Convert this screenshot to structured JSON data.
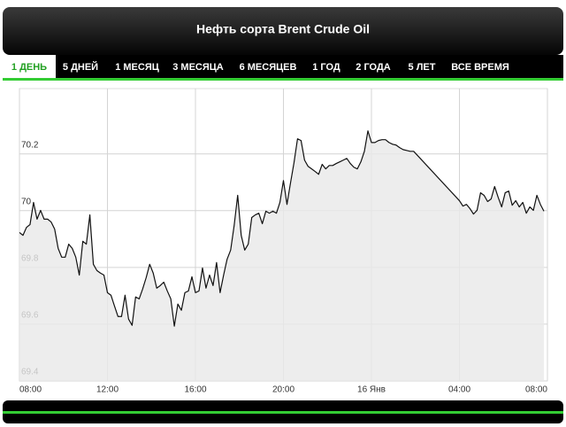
{
  "tabs": [
    "1 ДЕНЬ",
    "5 ДНЕЙ",
    "1 МЕСЯЦ",
    "3 МЕСЯЦА",
    "6 МЕСЯЦЕВ",
    "1 ГОД",
    "2 ГОДА",
    "5 ЛЕТ",
    "ВСЕ ВРЕМЯ"
  ],
  "chart_data": {
    "type": "line",
    "title": "Нефть сорта Brent Crude Oil",
    "xlim": [
      0,
      24
    ],
    "xticks": [
      {
        "value": 0,
        "label": "08:00"
      },
      {
        "value": 4,
        "label": "12:00"
      },
      {
        "value": 8,
        "label": "16:00"
      },
      {
        "value": 12,
        "label": "20:00"
      },
      {
        "value": 16,
        "label": "16 Янв"
      },
      {
        "value": 20,
        "label": "04:00"
      },
      {
        "value": 24,
        "label": "08:00"
      }
    ],
    "ylim": [
      69.4,
      70.43
    ],
    "yticks": [
      69.4,
      69.6,
      69.8,
      70,
      70.2
    ],
    "grid": true,
    "color": "#111111",
    "x": [
      0,
      0.16,
      0.32,
      0.48,
      0.64,
      0.8,
      0.96,
      1.12,
      1.28,
      1.44,
      1.6,
      1.76,
      1.92,
      2.08,
      2.24,
      2.4,
      2.56,
      2.72,
      2.88,
      3.04,
      3.2,
      3.36,
      3.52,
      3.68,
      3.84,
      4,
      4.16,
      4.32,
      4.48,
      4.64,
      4.8,
      4.96,
      5.12,
      5.28,
      5.44,
      5.6,
      5.76,
      5.92,
      6.08,
      6.24,
      6.4,
      6.56,
      6.72,
      6.88,
      7.04,
      7.2,
      7.36,
      7.52,
      7.68,
      7.84,
      8,
      8.16,
      8.32,
      8.48,
      8.64,
      8.8,
      8.96,
      9.12,
      9.28,
      9.44,
      9.6,
      9.76,
      9.92,
      10.08,
      10.24,
      10.4,
      10.56,
      10.72,
      10.88,
      11.04,
      11.2,
      11.36,
      11.52,
      11.68,
      11.84,
      12,
      12.16,
      12.32,
      12.48,
      12.64,
      12.8,
      12.96,
      13.12,
      13.28,
      13.44,
      13.6,
      13.76,
      13.92,
      14.08,
      14.24,
      14.4,
      14.56,
      14.72,
      14.88,
      15.04,
      15.2,
      15.36,
      15.52,
      15.68,
      15.84,
      16,
      16.16,
      16.32,
      16.48,
      16.64,
      16.8,
      16.96,
      17.12,
      17.28,
      17.44,
      17.6,
      17.76,
      17.92,
      20,
      20.16,
      20.32,
      20.48,
      20.64,
      20.8,
      20.96,
      21.12,
      21.28,
      21.44,
      21.6,
      21.76,
      21.92,
      22.08,
      22.24,
      22.4,
      22.56,
      22.72,
      22.88,
      23.04,
      23.2,
      23.36,
      23.52,
      23.68,
      23.84
    ],
    "values": [
      69.923,
      69.913,
      69.941,
      69.951,
      70.029,
      69.97,
      70.001,
      69.97,
      69.97,
      69.96,
      69.935,
      69.867,
      69.836,
      69.836,
      69.882,
      69.867,
      69.836,
      69.773,
      69.892,
      69.882,
      69.985,
      69.811,
      69.789,
      69.78,
      69.773,
      69.711,
      69.702,
      69.664,
      69.627,
      69.627,
      69.702,
      69.618,
      69.596,
      69.696,
      69.689,
      69.724,
      69.764,
      69.811,
      69.78,
      69.727,
      69.736,
      69.748,
      69.717,
      69.689,
      69.593,
      69.671,
      69.649,
      69.711,
      69.717,
      69.767,
      69.711,
      69.717,
      69.798,
      69.727,
      69.773,
      69.736,
      69.817,
      69.711,
      69.773,
      69.829,
      69.861,
      69.948,
      70.054,
      69.913,
      69.861,
      69.882,
      69.976,
      69.985,
      69.991,
      69.954,
      69.998,
      69.991,
      69.998,
      69.991,
      70.029,
      70.106,
      70.022,
      70.097,
      70.169,
      70.253,
      70.247,
      70.178,
      70.156,
      70.147,
      70.138,
      70.128,
      70.163,
      70.147,
      70.159,
      70.159,
      70.166,
      70.172,
      70.178,
      70.184,
      70.166,
      70.153,
      70.147,
      70.172,
      70.209,
      70.281,
      70.24,
      70.24,
      70.247,
      70.25,
      70.25,
      70.24,
      70.234,
      70.231,
      70.222,
      70.215,
      70.212,
      70.209,
      70.209,
      70.035,
      70.016,
      70.022,
      70.007,
      69.988,
      70.001,
      70.063,
      70.054,
      70.032,
      70.041,
      70.085,
      70.047,
      70.013,
      70.063,
      70.069,
      70.019,
      70.035,
      70.013,
      70.029,
      69.991,
      70.013,
      70.001,
      70.054,
      70.022,
      69.998
    ]
  }
}
